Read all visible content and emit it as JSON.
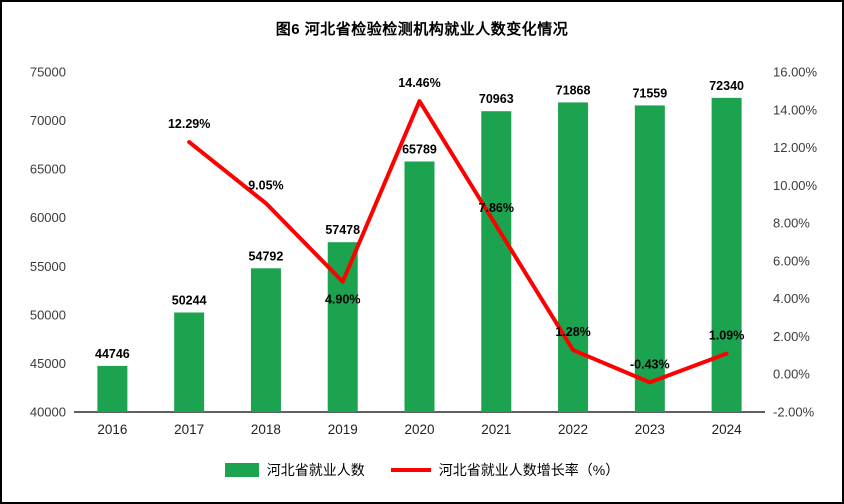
{
  "title": "图6 河北省检验检测机构就业人数变化情况",
  "chart_data": {
    "type": "bar+line",
    "title": "图6 河北省检验检测机构就业人数变化情况",
    "categories": [
      "2016",
      "2017",
      "2018",
      "2019",
      "2020",
      "2021",
      "2022",
      "2023",
      "2024"
    ],
    "series": [
      {
        "name": "河北省就业人数",
        "type": "bar",
        "axis": "left",
        "color": "#1ca34f",
        "values": [
          44746,
          50244,
          54792,
          57478,
          65789,
          70963,
          71868,
          71559,
          72340
        ]
      },
      {
        "name": "河北省就业人数增长率（%）",
        "type": "line",
        "axis": "right",
        "color": "#ff0000",
        "values": [
          null,
          12.29,
          9.05,
          4.9,
          14.46,
          7.86,
          1.28,
          -0.43,
          1.09
        ],
        "labels": [
          null,
          "12.29%",
          "9.05%",
          "4.90%",
          "14.46%",
          "7.86%",
          "1.28%",
          "-0.43%",
          "1.09%"
        ]
      }
    ],
    "left_axis": {
      "min": 40000,
      "max": 75000,
      "step": 5000,
      "ticks": [
        "40000",
        "45000",
        "50000",
        "55000",
        "60000",
        "65000",
        "70000",
        "75000"
      ]
    },
    "right_axis": {
      "min": -2,
      "max": 16,
      "step": 2,
      "ticks": [
        "-2.00%",
        "0.00%",
        "2.00%",
        "4.00%",
        "6.00%",
        "8.00%",
        "10.00%",
        "12.00%",
        "14.00%",
        "16.00%"
      ]
    },
    "grid": false,
    "legend_position": "bottom",
    "line_label_placement": [
      null,
      "above",
      "above",
      "below",
      "above",
      "above",
      "above",
      "above",
      "above"
    ]
  },
  "legend": {
    "items": [
      {
        "label": "河北省就业人数",
        "marker": "rect",
        "color": "#1ca34f"
      },
      {
        "label": "河北省就业人数增长率（%）",
        "marker": "line",
        "color": "#ff0000"
      }
    ]
  }
}
